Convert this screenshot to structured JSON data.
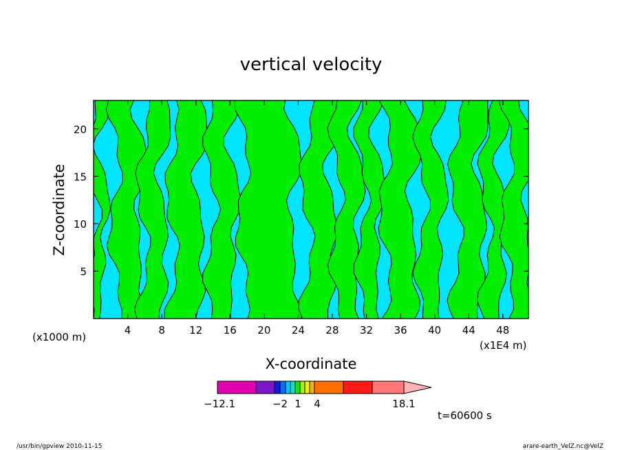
{
  "chart_data": {
    "type": "heatmap",
    "title": "vertical velocity",
    "xlabel": "X-coordinate",
    "ylabel": "Z-coordinate",
    "x_units": "(x1000 m)",
    "x_units_right": "(x1E4 m)",
    "xlim": [
      0,
      51
    ],
    "ylim": [
      0,
      23
    ],
    "xticks": [
      4,
      8,
      12,
      16,
      20,
      24,
      28,
      32,
      36,
      40,
      44,
      48
    ],
    "yticks": [
      5,
      10,
      15,
      20
    ],
    "contour_colors": {
      "negative": "#00e5ff",
      "positive": "#00ee00",
      "line": "#000000"
    },
    "colorbar": {
      "labels": [
        {
          "value": -12.1,
          "text": "−12.1"
        },
        {
          "value": -2,
          "text": "−2"
        },
        {
          "value": 1,
          "text": "1"
        },
        {
          "value": 4,
          "text": "4"
        },
        {
          "value": 18.1,
          "text": "18.1"
        }
      ],
      "colors": [
        "#e000b0",
        "#7a18c8",
        "#0020e0",
        "#0070ff",
        "#00c8ff",
        "#00e8c0",
        "#20e000",
        "#a8f000",
        "#f0f000",
        "#ffb000",
        "#ff7000",
        "#ff1a1a",
        "#ff7878",
        "#ffb4b4"
      ]
    },
    "time_label": "t=60600 s",
    "footer_left": "/usr/bin/gpview  2010-11-15",
    "footer_right": "arare-earth_VelZ.nc@VelZ"
  }
}
